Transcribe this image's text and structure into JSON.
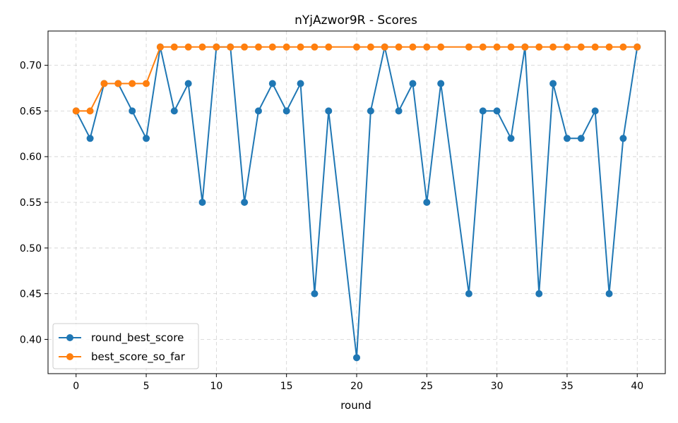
{
  "chart_data": {
    "type": "line",
    "title": "nYjAzwor9R - Scores",
    "xlabel": "round",
    "ylabel": "",
    "xlim": [
      -2,
      42
    ],
    "ylim": [
      0.3625,
      0.7375
    ],
    "xticks": [
      0,
      5,
      10,
      15,
      20,
      25,
      30,
      35,
      40
    ],
    "yticks": [
      0.4,
      0.45,
      0.5,
      0.55,
      0.6,
      0.65,
      0.7
    ],
    "ytick_labels": [
      "0.40",
      "0.45",
      "0.50",
      "0.55",
      "0.60",
      "0.65",
      "0.70"
    ],
    "grid": true,
    "legend_position": "lower-left",
    "series": [
      {
        "name": "round_best_score",
        "color": "#1f77b4",
        "x": [
          0,
          1,
          2,
          3,
          4,
          5,
          6,
          7,
          8,
          9,
          10,
          11,
          12,
          13,
          14,
          15,
          16,
          17,
          18,
          20,
          21,
          22,
          23,
          24,
          25,
          26,
          28,
          29,
          30,
          31,
          32,
          33,
          34,
          35,
          36,
          37,
          38,
          39,
          40
        ],
        "y": [
          0.65,
          0.62,
          0.68,
          0.68,
          0.65,
          0.62,
          0.72,
          0.65,
          0.68,
          0.55,
          0.72,
          0.72,
          0.55,
          0.65,
          0.68,
          0.65,
          0.68,
          0.45,
          0.65,
          0.38,
          0.65,
          0.72,
          0.65,
          0.68,
          0.55,
          0.68,
          0.45,
          0.65,
          0.65,
          0.62,
          0.72,
          0.45,
          0.68,
          0.62,
          0.62,
          0.65,
          0.45,
          0.62,
          0.72
        ]
      },
      {
        "name": "best_score_so_far",
        "color": "#ff7f0e",
        "x": [
          0,
          1,
          2,
          3,
          4,
          5,
          6,
          7,
          8,
          9,
          10,
          11,
          12,
          13,
          14,
          15,
          16,
          17,
          18,
          20,
          21,
          22,
          23,
          24,
          25,
          26,
          28,
          29,
          30,
          31,
          32,
          33,
          34,
          35,
          36,
          37,
          38,
          39,
          40
        ],
        "y": [
          0.65,
          0.65,
          0.68,
          0.68,
          0.68,
          0.68,
          0.72,
          0.72,
          0.72,
          0.72,
          0.72,
          0.72,
          0.72,
          0.72,
          0.72,
          0.72,
          0.72,
          0.72,
          0.72,
          0.72,
          0.72,
          0.72,
          0.72,
          0.72,
          0.72,
          0.72,
          0.72,
          0.72,
          0.72,
          0.72,
          0.72,
          0.72,
          0.72,
          0.72,
          0.72,
          0.72,
          0.72,
          0.72,
          0.72
        ]
      }
    ]
  }
}
